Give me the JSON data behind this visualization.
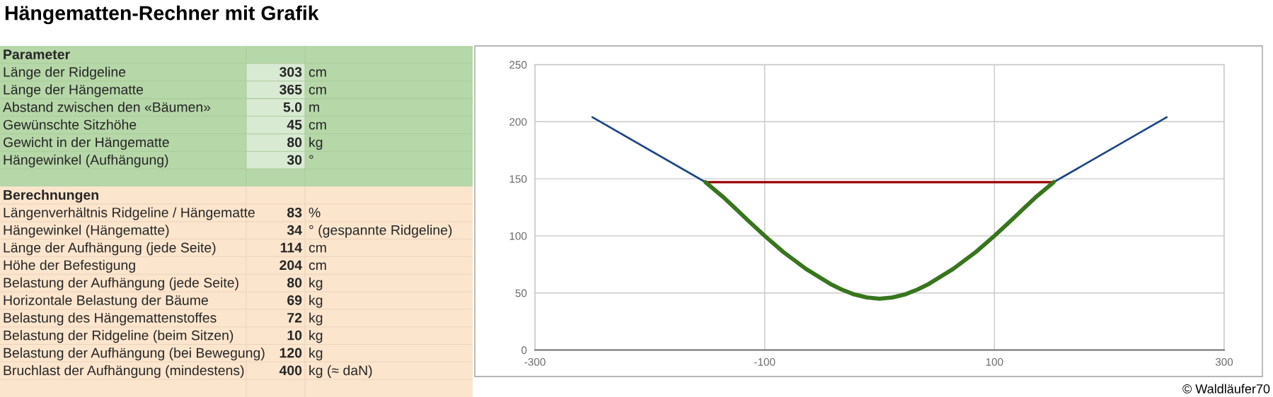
{
  "chart_data": [
    {
      "type": "other",
      "title": "Hängematten-Rechner mit Grafik",
      "subtitle": "Parameter",
      "categories": [
        "Länge der Ridgeline",
        "Länge der Hängematte",
        "Abstand zwischen den «Bäumen»",
        "Gewünschte Sitzhöhe",
        "Gewicht in der Hängematte",
        "Hängewinkel (Aufhängung)"
      ],
      "annotations": [
        "303",
        "cm",
        "365",
        "cm",
        "5.0",
        "m",
        "45",
        "cm",
        "80",
        "kg",
        "30",
        "°"
      ]
    },
    {
      "type": "other",
      "title": "Berechnungen",
      "categories": [
        "Längenverhältnis Ridgeline / Hängematte",
        "Hängewinkel (Hängematte)",
        "Länge der Aufhängung (jede Seite)",
        "Höhe der Befestigung",
        "Belastung der Aufhängung (jede Seite)",
        "Horizontale Belastung der Bäume",
        "Belastung des Hängemattenstoffes",
        "Belastung der Ridgeline (beim Sitzen)",
        "Belastung der Aufhängung (bei Bewegung)",
        "Bruchlast der Aufhängung (mindestens)"
      ],
      "values": [
        83,
        34,
        114,
        204,
        80,
        69,
        72,
        10,
        120,
        400
      ],
      "data_labels": true,
      "annotations": [
        "%",
        "° (gespannte Ridgeline)",
        "cm",
        "cm",
        "kg",
        "kg",
        "kg",
        "kg",
        "kg",
        "kg (≈ daN)"
      ]
    },
    {
      "type": "line",
      "series": [
        {
          "color": "#1c4587",
          "x": [
            -250,
            -151.5
          ],
          "values": [
            204,
            147
          ]
        },
        {
          "color": "#1c4587",
          "x": [
            151.5,
            250
          ],
          "values": [
            147,
            204
          ]
        },
        {
          "color": "#990000",
          "x": [
            -151.5,
            151.5
          ],
          "values": [
            147,
            147
          ]
        },
        {
          "color": "#38761d",
          "x": [
            -151.5,
            -135,
            -125,
            -115,
            -100,
            -84,
            -64,
            -43,
            -33,
            -23,
            -11,
            0,
            11,
            23,
            33,
            43,
            64,
            84,
            100,
            115,
            125,
            135,
            151.5
          ],
          "values": [
            147,
            133,
            123.5,
            114,
            100,
            86,
            71,
            58,
            53,
            49,
            46,
            45,
            46,
            49,
            53,
            58,
            71,
            86,
            100,
            114,
            123.5,
            133,
            147
          ]
        }
      ],
      "xlim": [
        -300,
        300
      ],
      "xticks": [
        -300,
        -100,
        100,
        300
      ],
      "ylim": [
        0,
        250
      ],
      "yticks": [
        0,
        50,
        100,
        150,
        200,
        250
      ],
      "grid": true,
      "marker": "none",
      "line_style": "solid",
      "annotations": [
        "© Waldläufer70"
      ]
    }
  ]
}
